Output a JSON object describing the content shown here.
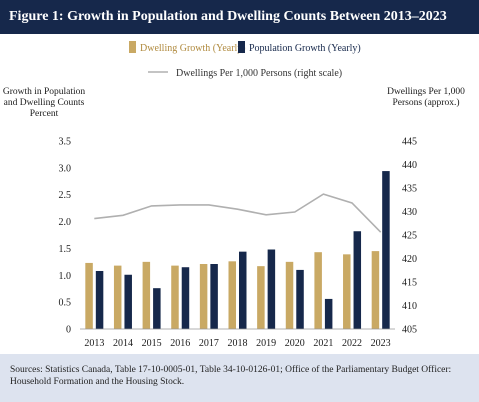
{
  "figure": {
    "title": "Figure 1: Growth in Population and Dwelling Counts Between 2013–2023",
    "source": "Sources: Statistics Canada, Table 17-10-0005-01, Table 34-10-0126-01; Office of the Parliamentary Budget Officer: Household Formation and the Housing Stock."
  },
  "chart_data": {
    "type": "bar",
    "categories": [
      "2013",
      "2014",
      "2015",
      "2016",
      "2017",
      "2018",
      "2019",
      "2020",
      "2021",
      "2022",
      "2023"
    ],
    "series": [
      {
        "name": "Dwelling Growth (Yearly)",
        "type": "bar",
        "axis": "left",
        "color": "#c9a964",
        "values": [
          1.23,
          1.18,
          1.25,
          1.18,
          1.21,
          1.26,
          1.17,
          1.25,
          1.43,
          1.39,
          1.45
        ]
      },
      {
        "name": "Population Growth (Yearly)",
        "type": "bar",
        "axis": "left",
        "color": "#16284b",
        "values": [
          1.08,
          1.01,
          0.76,
          1.15,
          1.21,
          1.44,
          1.48,
          1.1,
          0.56,
          1.82,
          2.94
        ]
      },
      {
        "name": "Dwellings Per 1,000 Persons (right scale)",
        "type": "line",
        "axis": "right",
        "color": "#b0b0b0",
        "values": [
          428.5,
          429.2,
          431.2,
          431.4,
          431.4,
          430.5,
          429.3,
          429.9,
          433.7,
          431.8,
          425.6
        ]
      }
    ],
    "ylabel_left": "Growth in Population and Dwelling Counts Percent",
    "ylabel_left_lines": [
      "Growth in Population",
      "and Dwelling Counts",
      "Percent"
    ],
    "ylabel_right": "Dwellings Per 1,000 Persons (approx.)",
    "ylabel_right_lines": [
      "Dwellings Per 1,000",
      "Persons (approx.)"
    ],
    "ylim_left": [
      0,
      3.5
    ],
    "yticks_left": [
      "0",
      "0.5",
      "1.0",
      "1.5",
      "2.0",
      "2.5",
      "3.0",
      "3.5"
    ],
    "ylim_right": [
      405,
      445
    ],
    "yticks_right": [
      "405",
      "410",
      "415",
      "420",
      "425",
      "430",
      "435",
      "440",
      "445"
    ],
    "grid": false,
    "legend_position": "top-center"
  }
}
